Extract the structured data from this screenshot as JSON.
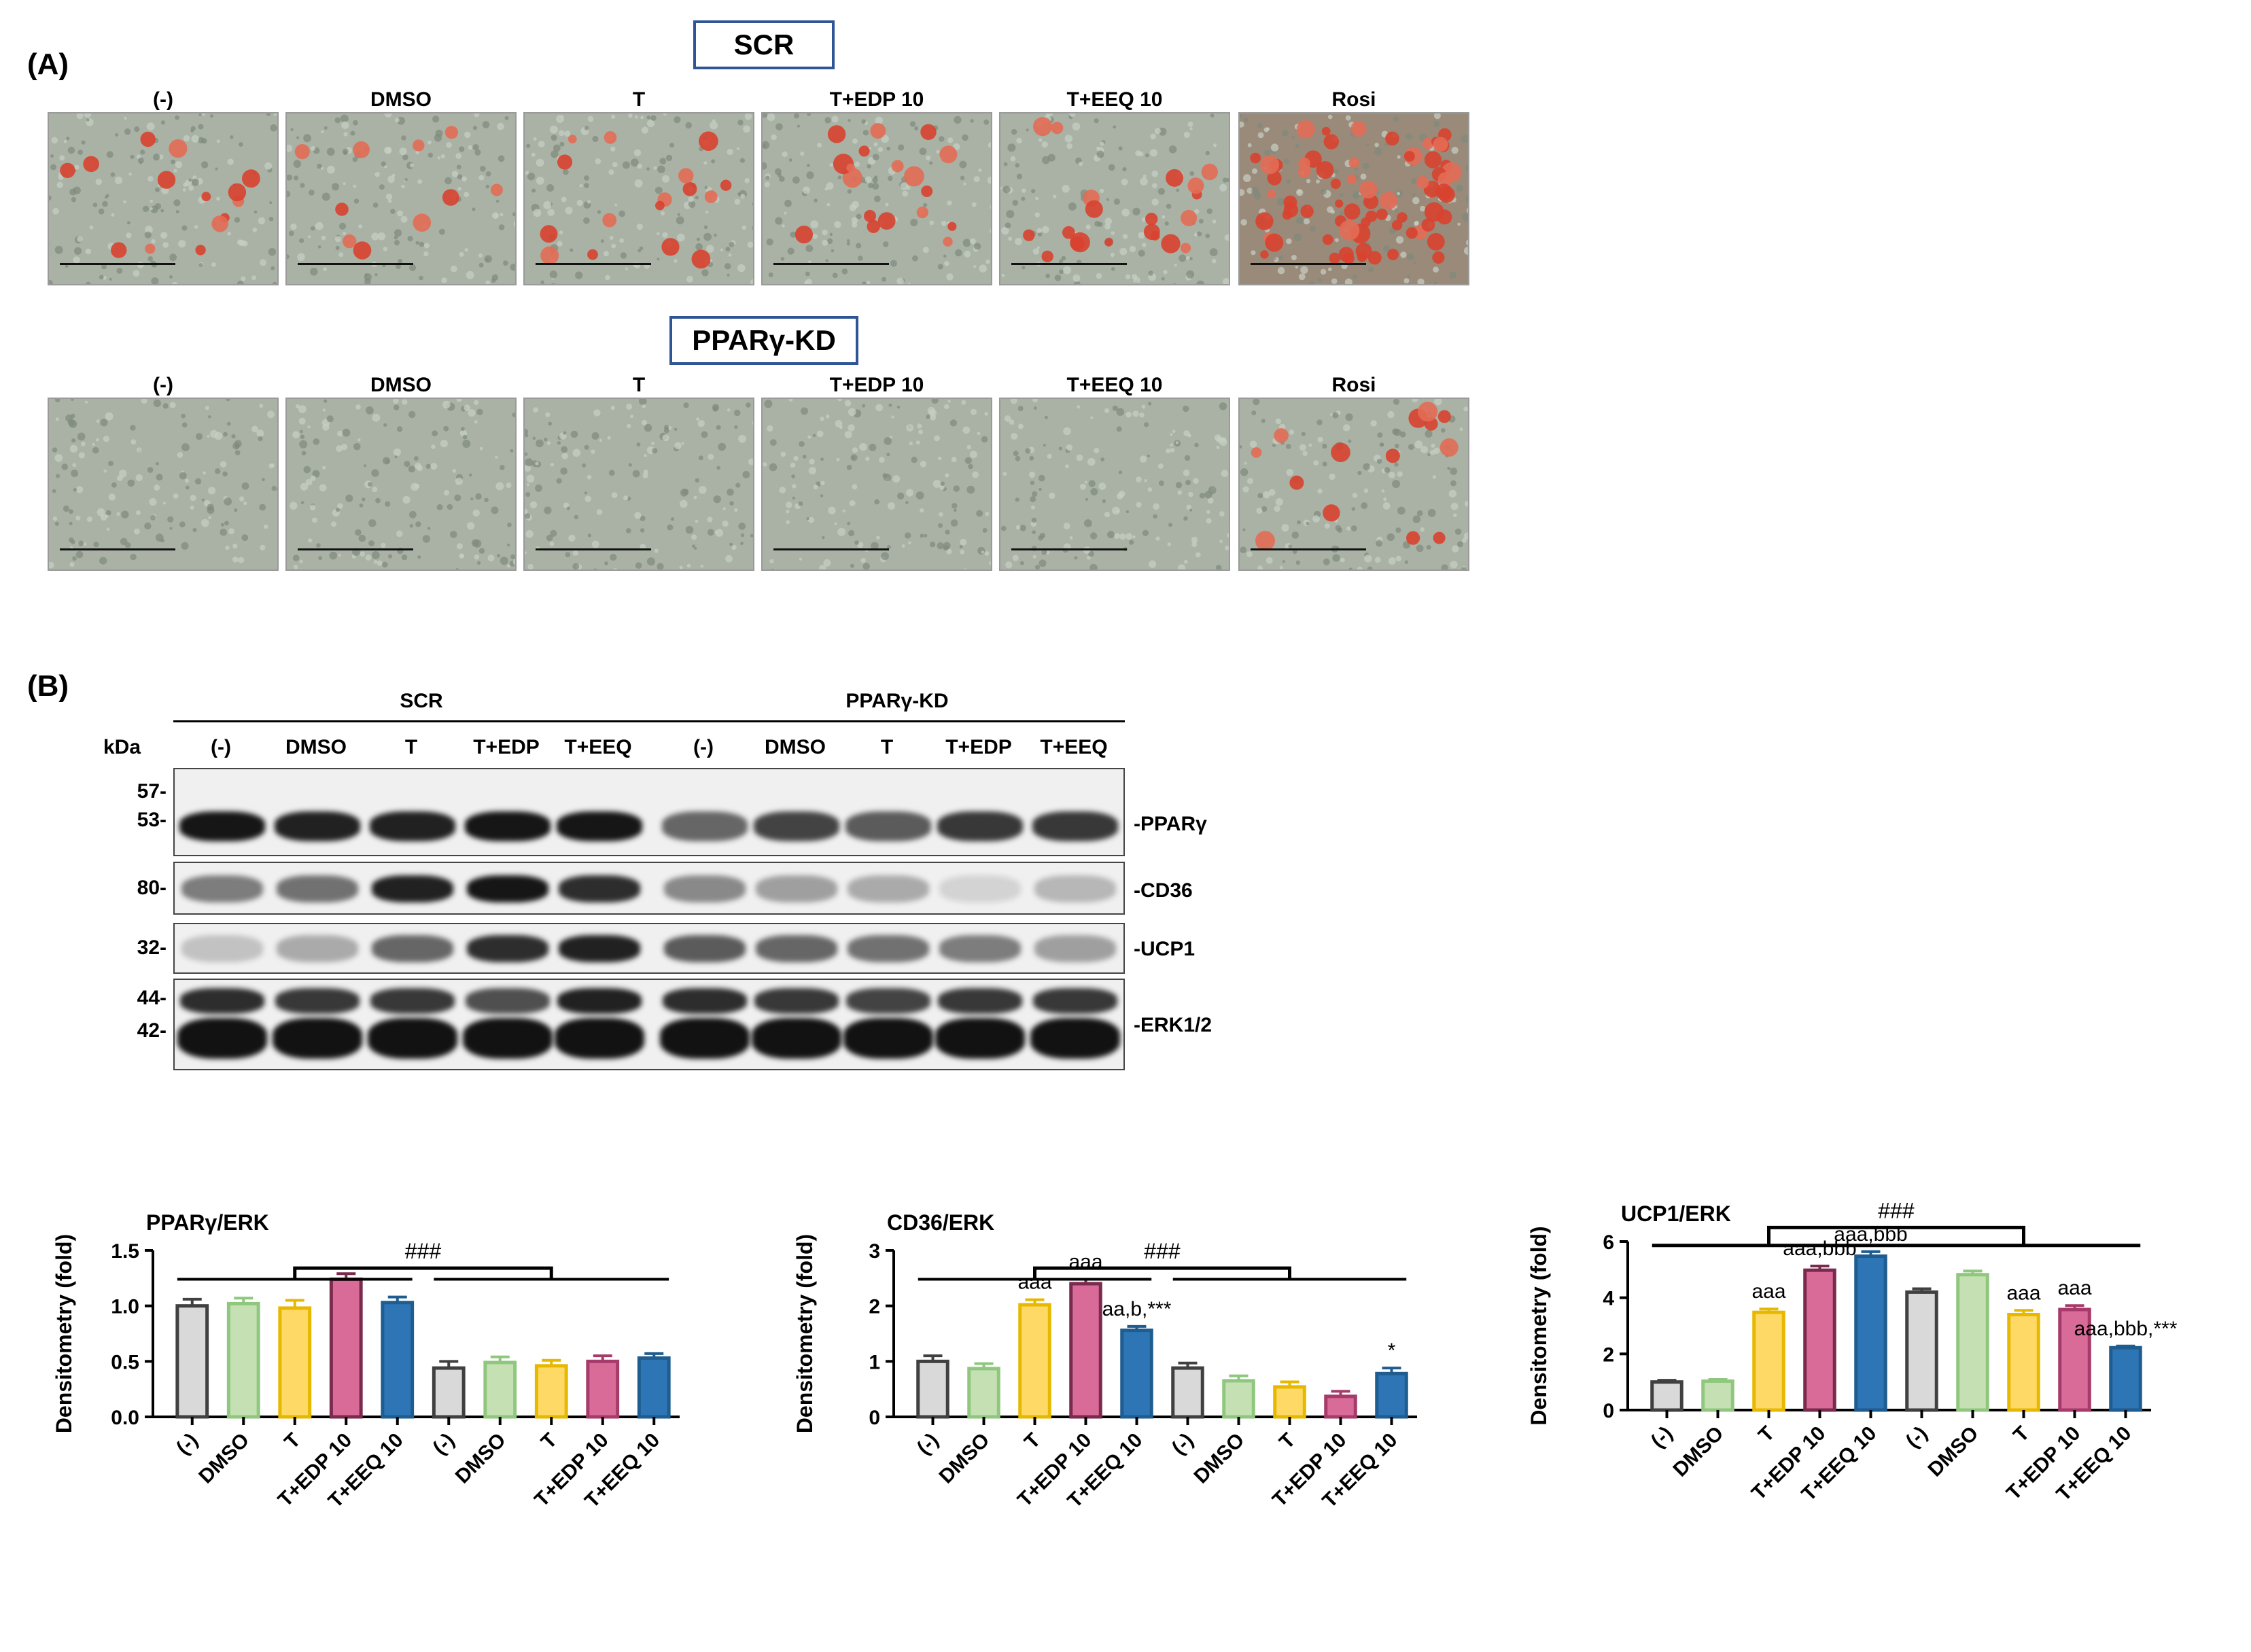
{
  "panelA": {
    "label": "(A)",
    "scr_title": "SCR",
    "kd_title": "PPARγ-KD",
    "conditions": [
      "(-)",
      "DMSO",
      "T",
      "T+EDP 10",
      "T+EEQ 10",
      "Rosi"
    ]
  },
  "panelB": {
    "label": "(B)",
    "group_scr": "SCR",
    "group_kd": "PPARγ-KD",
    "kda_label": "kDa",
    "lanes": [
      "(-)",
      "DMSO",
      "T",
      "T+EDP",
      "T+EEQ",
      "(-)",
      "DMSO",
      "T",
      "T+EDP",
      "T+EEQ"
    ],
    "markers": {
      "pparg": [
        "57-",
        "53-"
      ],
      "cd36": [
        "80-"
      ],
      "ucp1": [
        "32-"
      ],
      "erk": [
        "44-",
        "42-"
      ]
    },
    "proteins": {
      "pparg": "-PPARγ",
      "cd36": "-CD36",
      "ucp1": "-UCP1",
      "erk": "-ERK1/2"
    }
  },
  "chart_data": [
    {
      "type": "bar",
      "title": "PPARγ/ERK",
      "ylabel": "Densitometry (fold)",
      "ylim": [
        0,
        1.5
      ],
      "yticks": [
        "0.0",
        "0.5",
        "1.0",
        "1.5"
      ],
      "categories": [
        "(-)",
        "DMSO",
        "T",
        "T+EDP 10",
        "T+EEQ 10",
        "(-)",
        "DMSO",
        "T",
        "T+EDP 10",
        "T+EEQ 10"
      ],
      "values": [
        1.0,
        1.02,
        0.98,
        1.24,
        1.03,
        0.44,
        0.49,
        0.46,
        0.5,
        0.53
      ],
      "errors": [
        0.06,
        0.05,
        0.07,
        0.05,
        0.05,
        0.06,
        0.05,
        0.05,
        0.05,
        0.04
      ],
      "annotations": [
        "",
        "",
        "",
        "",
        "",
        "",
        "",
        "",
        "",
        ""
      ],
      "significance": "###",
      "bracket_top": 1.34,
      "group_line": 1.24
    },
    {
      "type": "bar",
      "title": "CD36/ERK",
      "ylabel": "Densitometry (fold)",
      "ylim": [
        0,
        3
      ],
      "yticks": [
        "0",
        "1",
        "2",
        "3"
      ],
      "categories": [
        "(-)",
        "DMSO",
        "T",
        "T+EDP 10",
        "T+EEQ 10",
        "(-)",
        "DMSO",
        "T",
        "T+EDP 10",
        "T+EEQ 10"
      ],
      "values": [
        1.0,
        0.87,
        2.02,
        2.4,
        1.56,
        0.88,
        0.65,
        0.54,
        0.37,
        0.78
      ],
      "errors": [
        0.1,
        0.09,
        0.09,
        0.08,
        0.07,
        0.09,
        0.09,
        0.09,
        0.09,
        0.1
      ],
      "annotations": [
        "",
        "",
        "aaa",
        "aaa",
        "aa,b,***",
        "",
        "",
        "",
        "",
        "*"
      ],
      "significance": "###",
      "bracket_top": 2.68,
      "group_line": 2.48
    },
    {
      "type": "bar",
      "title": "UCP1/ERK",
      "ylabel": "Densitometry (fold)",
      "ylim": [
        0,
        6
      ],
      "yticks": [
        "0",
        "2",
        "4",
        "6"
      ],
      "categories": [
        "(-)",
        "DMSO",
        "T",
        "T+EDP 10",
        "T+EEQ 10",
        "(-)",
        "DMSO",
        "T",
        "T+EDP 10",
        "T+EEQ 10"
      ],
      "values": [
        1.0,
        1.03,
        3.48,
        4.98,
        5.48,
        4.2,
        4.82,
        3.4,
        3.58,
        2.22
      ],
      "errors": [
        0.06,
        0.06,
        0.12,
        0.15,
        0.16,
        0.12,
        0.13,
        0.15,
        0.14,
        0.06
      ],
      "annotations": [
        "",
        "",
        "aaa",
        "aaa,bbb",
        "aaa,bbb",
        "",
        "",
        "aaa",
        "aaa",
        "aaa,bbb,***"
      ],
      "significance": "###",
      "bracket_top": 6.5,
      "group_line": 5.86
    }
  ],
  "colors": {
    "fill": [
      "#d9d9d9",
      "#c5e0b3",
      "#ffd966",
      "#d86b98",
      "#2e75b6",
      "#d9d9d9",
      "#c5e0b3",
      "#ffd966",
      "#d86b98",
      "#2e75b6"
    ],
    "edge": [
      "#404040",
      "#8fc77e",
      "#e6b800",
      "#7a2a4d",
      "#1f5c8f",
      "#404040",
      "#8fc77e",
      "#e6b800",
      "#a63a6a",
      "#1f5c8f"
    ]
  }
}
